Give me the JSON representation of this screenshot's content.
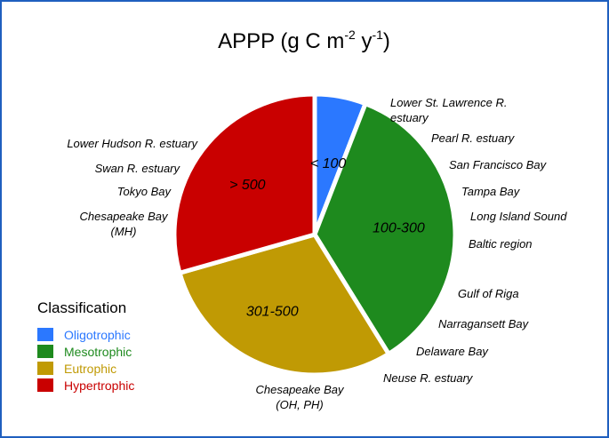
{
  "chart_data": {
    "type": "pie",
    "title": "APPP (g C m-2 y-1)",
    "title_parts": {
      "base": "APPP (g C m",
      "exp1": "-2",
      "mid": " y",
      "exp2": "-1",
      "end": ")"
    },
    "slices": [
      {
        "label": "< 100",
        "classification": "Oligotrophic",
        "value": 1,
        "color": "#2b78ff"
      },
      {
        "label": "100-300",
        "classification": "Mesotrophic",
        "value": 6,
        "color": "#1e8a1e"
      },
      {
        "label": "301-500",
        "classification": "Eutrophic",
        "value": 5,
        "color": "#c09a04"
      },
      {
        "label": "> 500",
        "classification": "Hypertrophic",
        "value": 5,
        "color": "#c90000"
      }
    ],
    "sites": {
      "oligotrophic": [
        "Lower St. Lawrence R. estuary"
      ],
      "mesotrophic": [
        "Pearl R. estuary",
        "San Francisco Bay",
        "Tampa Bay",
        "Long Island Sound",
        "Baltic region"
      ],
      "eutrophic": [
        "Gulf of Riga",
        "Narragansett Bay",
        "Delaware Bay",
        "Neuse R. estuary",
        "Chesapeake Bay (OH, PH)"
      ],
      "hypertrophic": [
        "Lower Hudson R. estuary",
        "Swan R. estuary",
        "Tokyo Bay",
        "Chesapeake Bay (MH)"
      ]
    },
    "site_labels": [
      {
        "lines": [
          "Lower St. Lawrence R.",
          "estuary"
        ],
        "anchor": "start"
      },
      {
        "lines": [
          "Pearl R. estuary"
        ],
        "anchor": "start"
      },
      {
        "lines": [
          "San Francisco Bay"
        ],
        "anchor": "start"
      },
      {
        "lines": [
          "Tampa Bay"
        ],
        "anchor": "start"
      },
      {
        "lines": [
          "Long Island Sound"
        ],
        "anchor": "start"
      },
      {
        "lines": [
          "Baltic region"
        ],
        "anchor": "start"
      },
      {
        "lines": [
          "Gulf of Riga"
        ],
        "anchor": "start"
      },
      {
        "lines": [
          "Narragansett Bay"
        ],
        "anchor": "start"
      },
      {
        "lines": [
          "Delaware Bay"
        ],
        "anchor": "start"
      },
      {
        "lines": [
          "Neuse R. estuary"
        ],
        "anchor": "start"
      },
      {
        "lines": [
          "Chesapeake Bay",
          "(OH, PH)"
        ],
        "anchor": "middle"
      },
      {
        "lines": [
          "Lower Hudson R. estuary"
        ],
        "anchor": "end"
      },
      {
        "lines": [
          "Swan R. estuary"
        ],
        "anchor": "end"
      },
      {
        "lines": [
          "Tokyo Bay"
        ],
        "anchor": "end"
      },
      {
        "lines": [
          "Chesapeake Bay",
          "(MH)"
        ],
        "anchor": "middle"
      }
    ],
    "legend": {
      "title": "Classification",
      "placement": "bottom-left",
      "items": [
        {
          "label": "Oligotrophic",
          "color": "#2b78ff",
          "text_color": "#2b78ff"
        },
        {
          "label": "Mesotrophic",
          "color": "#1e8a1e",
          "text_color": "#1e8a1e"
        },
        {
          "label": "Eutrophic",
          "color": "#c09a04",
          "text_color": "#c09a04"
        },
        {
          "label": "Hypertrophic",
          "color": "#c90000",
          "text_color": "#c90000"
        }
      ]
    },
    "frame_color": "#1f5fbf"
  }
}
